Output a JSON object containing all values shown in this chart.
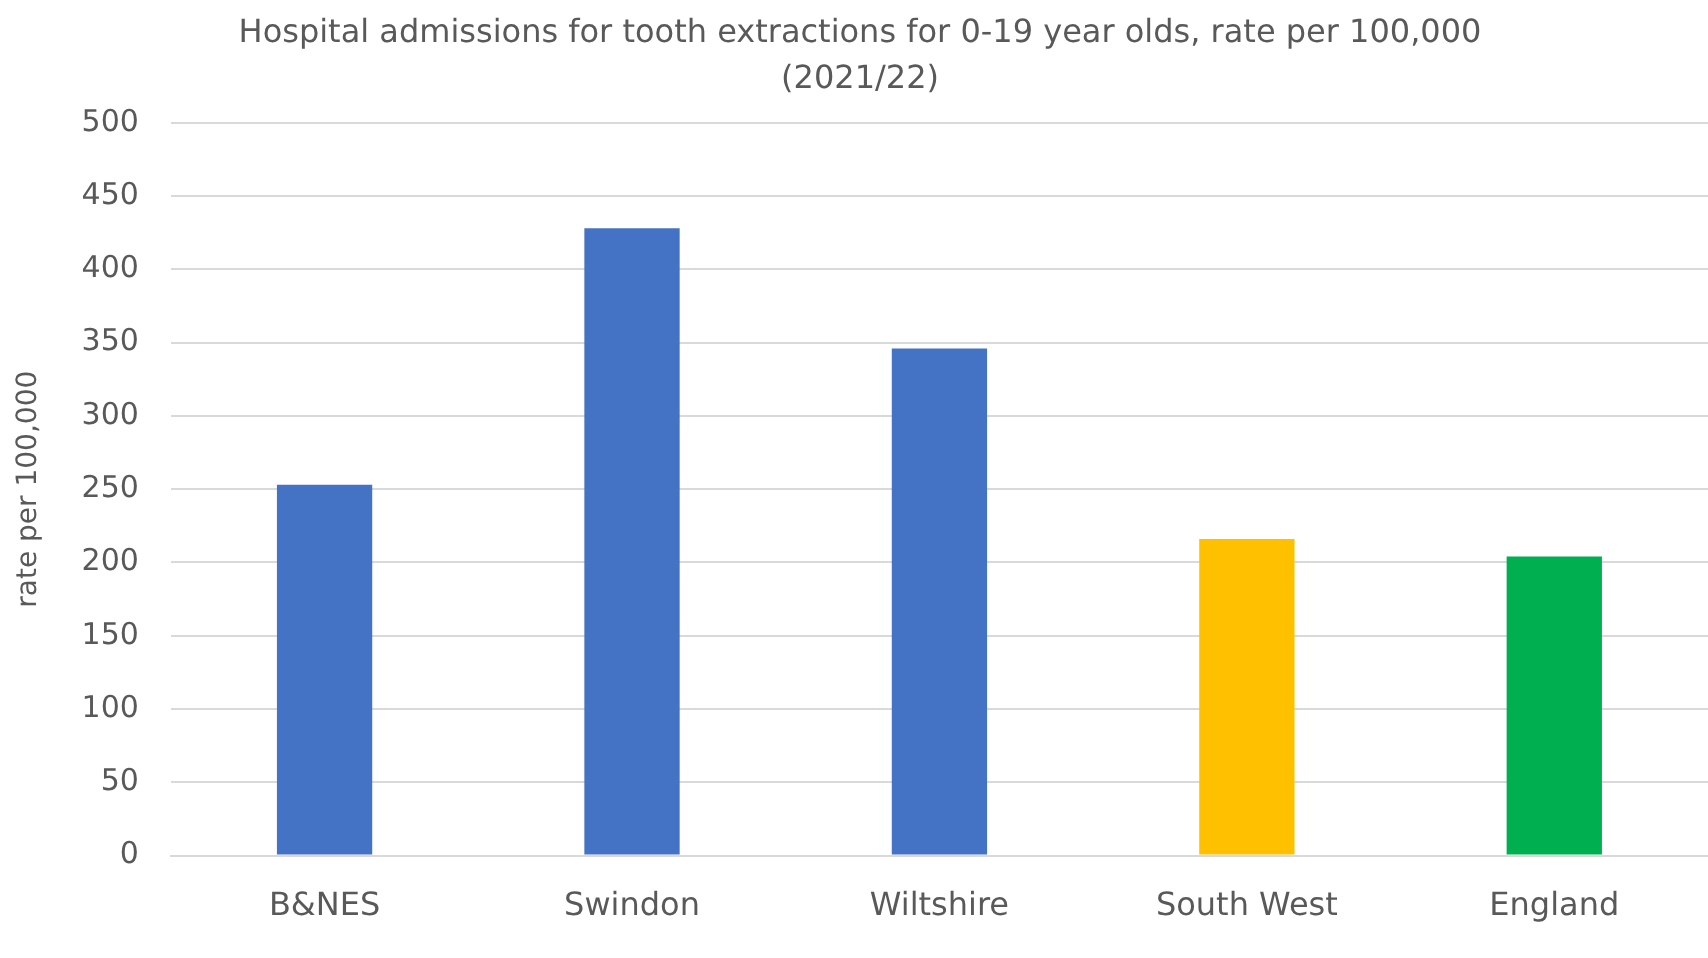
{
  "chart_data": {
    "type": "bar",
    "title": "Hospital admissions for tooth extractions for 0-19 year olds, rate per 100,000 (2021/22)",
    "ylabel": "rate per 100,000",
    "categories": [
      "B&NES",
      "Swindon",
      "Wiltshire",
      "South West",
      "England"
    ],
    "values": [
      253,
      428,
      346,
      216,
      204
    ],
    "colors": [
      "#4472c4",
      "#4472c4",
      "#4472c4",
      "#ffc000",
      "#00b050"
    ],
    "ylim": [
      0,
      500
    ],
    "yticks": [
      0,
      50,
      100,
      150,
      200,
      250,
      300,
      350,
      400,
      450,
      500
    ],
    "grid": "y",
    "legend": false
  }
}
